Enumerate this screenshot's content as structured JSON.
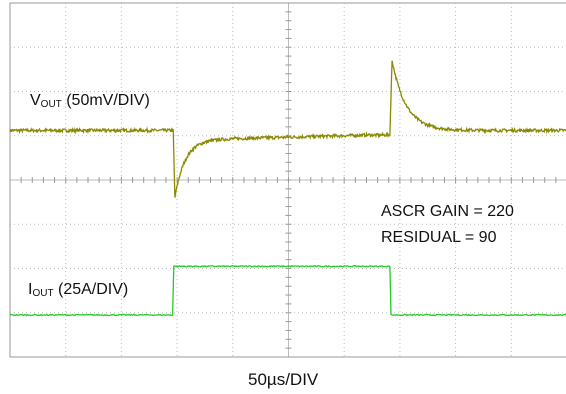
{
  "chart_data": {
    "type": "line",
    "title": "",
    "xlabel": "50µs/DIV",
    "x_divisions": 10,
    "y_divisions": 8,
    "grid": true,
    "series": [
      {
        "name_main": "V",
        "name_sub": "OUT",
        "scale": "(50mV/DIV)",
        "color": "#8a8a00",
        "unit": "div",
        "events": [
          {
            "t_div": 0.0,
            "level_div": 5.12
          },
          {
            "t_div": 2.93,
            "level_div": 5.12,
            "note": "load step up"
          },
          {
            "t_div": 2.98,
            "level_div": 3.6,
            "note": "undershoot min"
          },
          {
            "t_div": 4.0,
            "level_div": 4.9
          },
          {
            "t_div": 6.82,
            "level_div": 5.05,
            "note": "load step down"
          },
          {
            "t_div": 6.87,
            "level_div": 6.7,
            "note": "overshoot peak"
          },
          {
            "t_div": 8.0,
            "level_div": 5.2
          },
          {
            "t_div": 10.0,
            "level_div": 5.12
          }
        ]
      },
      {
        "name_main": "I",
        "name_sub": "OUT",
        "scale": "(25A/DIV)",
        "color": "#22cc22",
        "unit": "div",
        "events": [
          {
            "t_div": 0.0,
            "level_div": 0.95
          },
          {
            "t_div": 2.93,
            "level_div": 0.95
          },
          {
            "t_div": 2.94,
            "level_div": 2.05
          },
          {
            "t_div": 6.82,
            "level_div": 2.05
          },
          {
            "t_div": 6.83,
            "level_div": 0.95
          },
          {
            "t_div": 10.0,
            "level_div": 0.95
          }
        ]
      }
    ],
    "annotations": [
      "ASCR GAIN = 220",
      "RESIDUAL = 90"
    ]
  },
  "labels": {
    "vout_main": "V",
    "vout_sub": "OUT",
    "vout_scale": " (50mV/DIV)",
    "iout_main": "I",
    "iout_sub": "OUT",
    "iout_scale": " (25A/DIV)",
    "ascr_gain": "ASCR GAIN = 220",
    "residual": "RESIDUAL = 90",
    "time_div": "50µs/DIV"
  }
}
